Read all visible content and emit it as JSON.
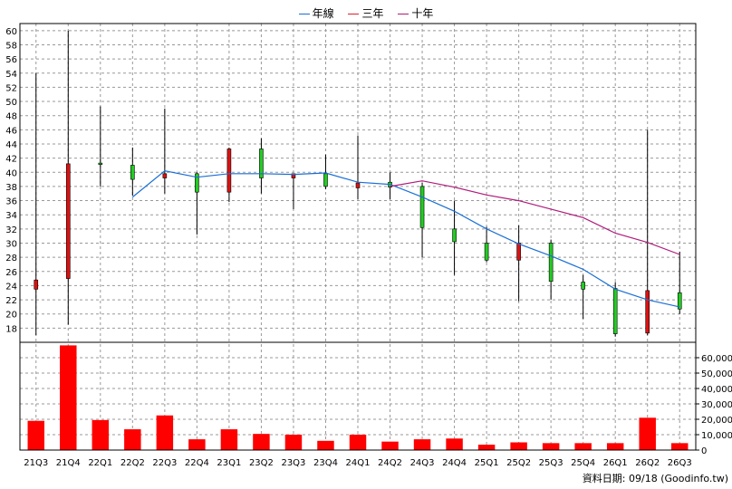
{
  "legend": [
    {
      "name": "年線",
      "color": "#1a6fd6"
    },
    {
      "name": "三年",
      "color": "#d8222b"
    },
    {
      "name": "十年",
      "color": "#b01a7a"
    }
  ],
  "footer": {
    "label": "資料日期: 09/18",
    "source": "(Goodinfo.tw)"
  },
  "colors": {
    "up": "#22cc22",
    "down": "#dd1111",
    "volume": "#ff0000",
    "grid": "#999999",
    "axis": "#000000"
  },
  "chart_data": {
    "type": "candlestick",
    "categories": [
      "21Q3",
      "21Q4",
      "22Q1",
      "22Q2",
      "22Q3",
      "22Q4",
      "23Q1",
      "23Q2",
      "23Q3",
      "23Q4",
      "24Q1",
      "24Q2",
      "24Q3",
      "24Q4",
      "25Q1",
      "25Q2",
      "25Q3",
      "25Q4",
      "26Q1",
      "26Q2",
      "26Q3"
    ],
    "price_axis": {
      "ylim": [
        16,
        61
      ],
      "ticks": [
        18,
        20,
        22,
        24,
        26,
        28,
        30,
        32,
        34,
        36,
        38,
        40,
        42,
        44,
        46,
        48,
        50,
        52,
        54,
        56,
        58,
        60
      ]
    },
    "volume_axis": {
      "ylim": [
        0,
        70000
      ],
      "ticks": [
        0,
        10000,
        20000,
        30000,
        40000,
        50000,
        60000
      ],
      "tick_labels": [
        "0",
        "10,000",
        "20,000",
        "30,000",
        "40,000",
        "50,000",
        "60,000"
      ]
    },
    "candles": [
      {
        "open": 24.8,
        "close": 23.5,
        "high": 54.0,
        "low": 17.0
      },
      {
        "open": 41.2,
        "close": 25.0,
        "high": 60.0,
        "low": 18.5
      },
      {
        "open": 41.2,
        "close": 41.3,
        "high": 49.3,
        "low": 38.0
      },
      {
        "open": 39.0,
        "close": 41.0,
        "high": 43.5,
        "low": 36.7
      },
      {
        "open": 39.8,
        "close": 39.2,
        "high": 49.0,
        "low": 37.0
      },
      {
        "open": 37.2,
        "close": 39.8,
        "high": 40.0,
        "low": 31.2
      },
      {
        "open": 43.3,
        "close": 37.2,
        "high": 43.5,
        "low": 35.8
      },
      {
        "open": 39.2,
        "close": 43.3,
        "high": 44.8,
        "low": 37.0
      },
      {
        "open": 39.8,
        "close": 39.2,
        "high": 39.8,
        "low": 34.8
      },
      {
        "open": 38.0,
        "close": 39.8,
        "high": 42.5,
        "low": 37.6
      },
      {
        "open": 38.5,
        "close": 37.8,
        "high": 45.2,
        "low": 36.2
      },
      {
        "open": 37.9,
        "close": 38.6,
        "high": 40.0,
        "low": 36.2
      },
      {
        "open": 32.2,
        "close": 38.0,
        "high": 38.5,
        "low": 28.0
      },
      {
        "open": 30.2,
        "close": 32.0,
        "high": 36.0,
        "low": 25.5
      },
      {
        "open": 27.6,
        "close": 30.0,
        "high": 32.3,
        "low": 27.3
      },
      {
        "open": 30.0,
        "close": 27.6,
        "high": 32.5,
        "low": 21.8
      },
      {
        "open": 24.6,
        "close": 30.0,
        "high": 30.5,
        "low": 22.0
      },
      {
        "open": 23.5,
        "close": 24.5,
        "high": 25.5,
        "low": 19.3
      },
      {
        "open": 17.2,
        "close": 23.6,
        "high": 24.5,
        "low": 16.8
      },
      {
        "open": 23.3,
        "close": 17.3,
        "high": 46.0,
        "low": 17.0
      },
      {
        "open": 20.7,
        "close": 23.0,
        "high": 28.8,
        "low": 20.0
      }
    ],
    "series": [
      {
        "name": "年線",
        "color": "#1a6fd6",
        "values": [
          null,
          null,
          null,
          36.5,
          40.2,
          39.3,
          39.8,
          39.8,
          39.7,
          39.9,
          38.6,
          38.3,
          36.5,
          34.5,
          32.0,
          29.9,
          28.2,
          26.3,
          23.5,
          22.0,
          21.0
        ]
      },
      {
        "name": "十年",
        "color": "#b01a7a",
        "values": [
          null,
          null,
          null,
          null,
          null,
          null,
          null,
          null,
          null,
          null,
          null,
          38.0,
          38.8,
          37.9,
          36.8,
          36.0,
          34.8,
          33.6,
          31.4,
          30.1,
          28.4
        ]
      }
    ],
    "volume": [
      19000,
      68000,
      19500,
      13500,
      22500,
      7000,
      13500,
      10500,
      10000,
      6000,
      10000,
      5500,
      7000,
      7500,
      3500,
      5000,
      4500,
      4500,
      4500,
      21000,
      4500
    ]
  }
}
